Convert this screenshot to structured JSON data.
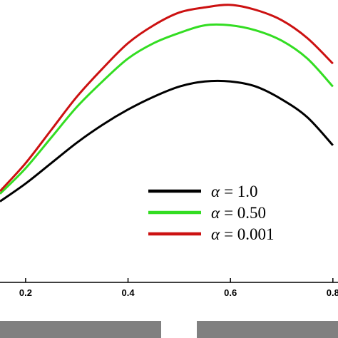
{
  "chart_data": {
    "type": "line",
    "title": "",
    "xlabel": "",
    "ylabel": "",
    "xlim": [
      0.15,
      0.81
    ],
    "ylim": [
      0.0,
      1.0
    ],
    "x_tick_labels": [
      "0.2",
      "0.4",
      "0.6",
      "0.8"
    ],
    "x_ticks": [
      0.2,
      0.4,
      0.6,
      0.8
    ],
    "grid": false,
    "legend_position": "bottom-right",
    "series": [
      {
        "name": "α = 1.0",
        "legend_symbol": "α",
        "legend_value": "= 1.0",
        "color": "#000000",
        "x": [
          0.15,
          0.2,
          0.25,
          0.3,
          0.35,
          0.4,
          0.45,
          0.5,
          0.55,
          0.6,
          0.65,
          0.7,
          0.75,
          0.8
        ],
        "y": [
          0.25,
          0.32,
          0.4,
          0.48,
          0.55,
          0.61,
          0.66,
          0.7,
          0.72,
          0.72,
          0.7,
          0.65,
          0.58,
          0.47
        ]
      },
      {
        "name": "α = 0.50",
        "legend_symbol": "α",
        "legend_value": "= 0.50",
        "color": "#33dd22",
        "x": [
          0.15,
          0.2,
          0.25,
          0.3,
          0.35,
          0.4,
          0.45,
          0.5,
          0.55,
          0.6,
          0.65,
          0.7,
          0.75,
          0.8
        ],
        "y": [
          0.28,
          0.38,
          0.5,
          0.62,
          0.72,
          0.81,
          0.87,
          0.91,
          0.94,
          0.94,
          0.92,
          0.88,
          0.81,
          0.7
        ]
      },
      {
        "name": "α = 0.001",
        "legend_symbol": "α",
        "legend_value": "= 0.001",
        "color": "#cc1111",
        "x": [
          0.15,
          0.2,
          0.25,
          0.3,
          0.35,
          0.4,
          0.45,
          0.5,
          0.55,
          0.6,
          0.65,
          0.7,
          0.75,
          0.8
        ],
        "y": [
          0.29,
          0.4,
          0.53,
          0.66,
          0.77,
          0.87,
          0.94,
          0.99,
          1.01,
          1.02,
          1.0,
          0.96,
          0.89,
          0.79
        ]
      }
    ]
  },
  "colors": {
    "axis": "#000000",
    "footer_bar": "#808080",
    "background": "#ffffff"
  }
}
